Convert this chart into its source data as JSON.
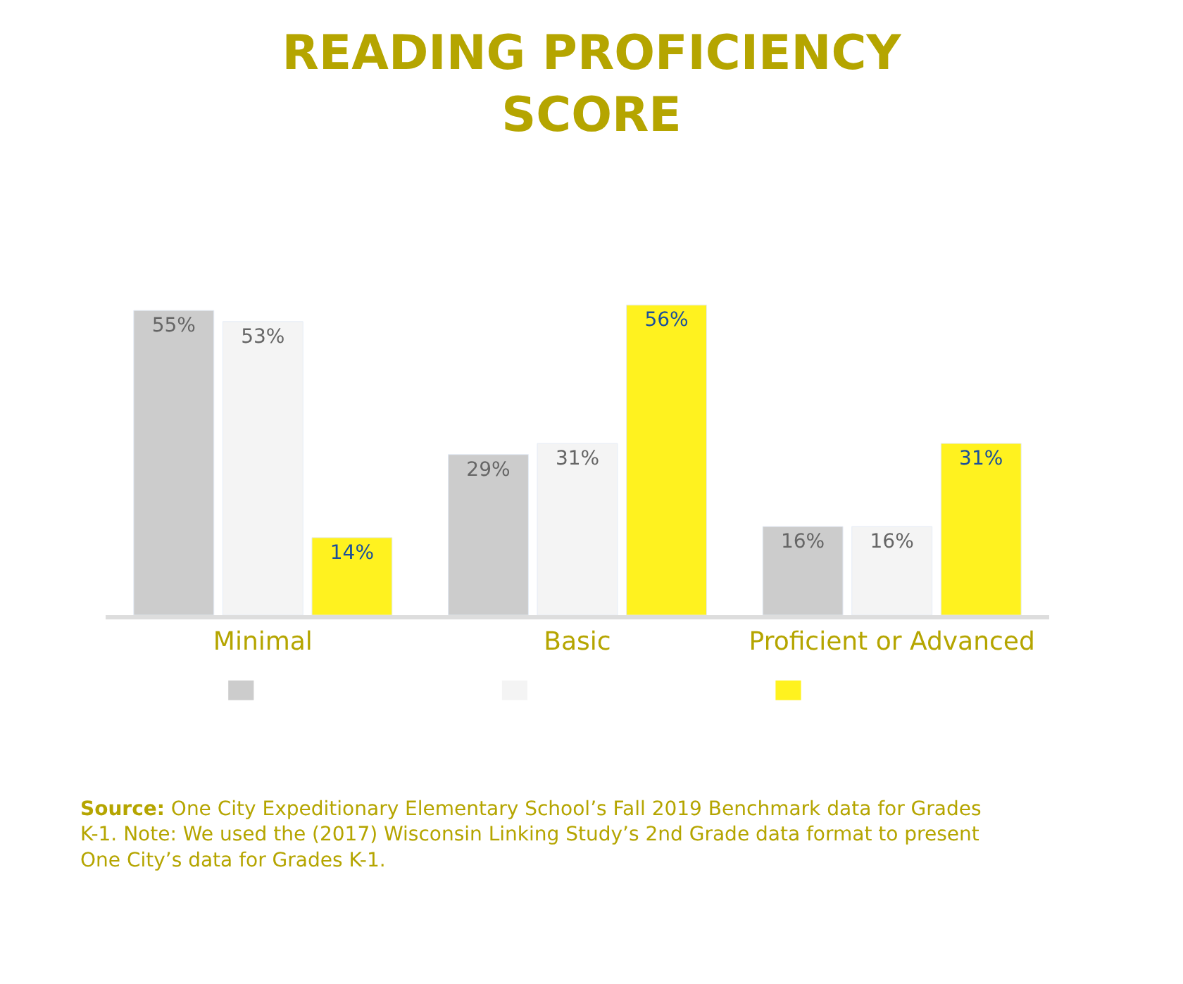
{
  "chart_data": {
    "type": "bar",
    "title": "READING PROFICIENCY\nSCORE",
    "categories": [
      "Minimal",
      "Basic",
      "Proficient or Advanced"
    ],
    "series": [
      {
        "color": "#cccccc",
        "values": [
          55,
          29,
          16
        ],
        "value_labels": [
          "55%",
          "29%",
          "16%"
        ]
      },
      {
        "color": "#f4f4f4",
        "values": [
          53,
          31,
          16
        ],
        "value_labels": [
          "53%",
          "31%",
          "16%"
        ]
      },
      {
        "color": "#fff21f",
        "values": [
          14,
          56,
          31
        ],
        "value_labels": [
          "14%",
          "56%",
          "31%"
        ]
      }
    ],
    "tick_labels": "x",
    "annotations": [
      "Source: One City Expeditionary Elementary School’s Fall 2019 Benchmark data for Grades K-1. Note: We used the (2017) Wisconsin Linking Study’s 2nd Grade data format to present One City’s data for Grades K-1."
    ]
  }
}
